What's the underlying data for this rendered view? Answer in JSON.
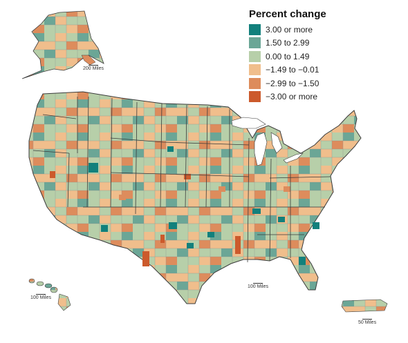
{
  "legend": {
    "title": "Percent change",
    "items": [
      {
        "label": "3.00 or more",
        "color": "#12807c"
      },
      {
        "label": "1.50 to 2.99",
        "color": "#6ba696"
      },
      {
        "label": "0.00 to 1.49",
        "color": "#b7cfa9"
      },
      {
        "label": "−1.49 to −0.01",
        "color": "#f0be8c"
      },
      {
        "label": "−2.99 to −1.50",
        "color": "#dd8c5c"
      },
      {
        "label": "−3.00 or more",
        "color": "#cc5a2c"
      }
    ]
  },
  "scales": {
    "alaska": "200 Miles",
    "hawaii": "100 Miles",
    "conus": "100 Miles",
    "puerto_rico": "50 Miles"
  },
  "colors": {
    "border": "#3a3a3a",
    "county_line": "#8f8f8f"
  }
}
